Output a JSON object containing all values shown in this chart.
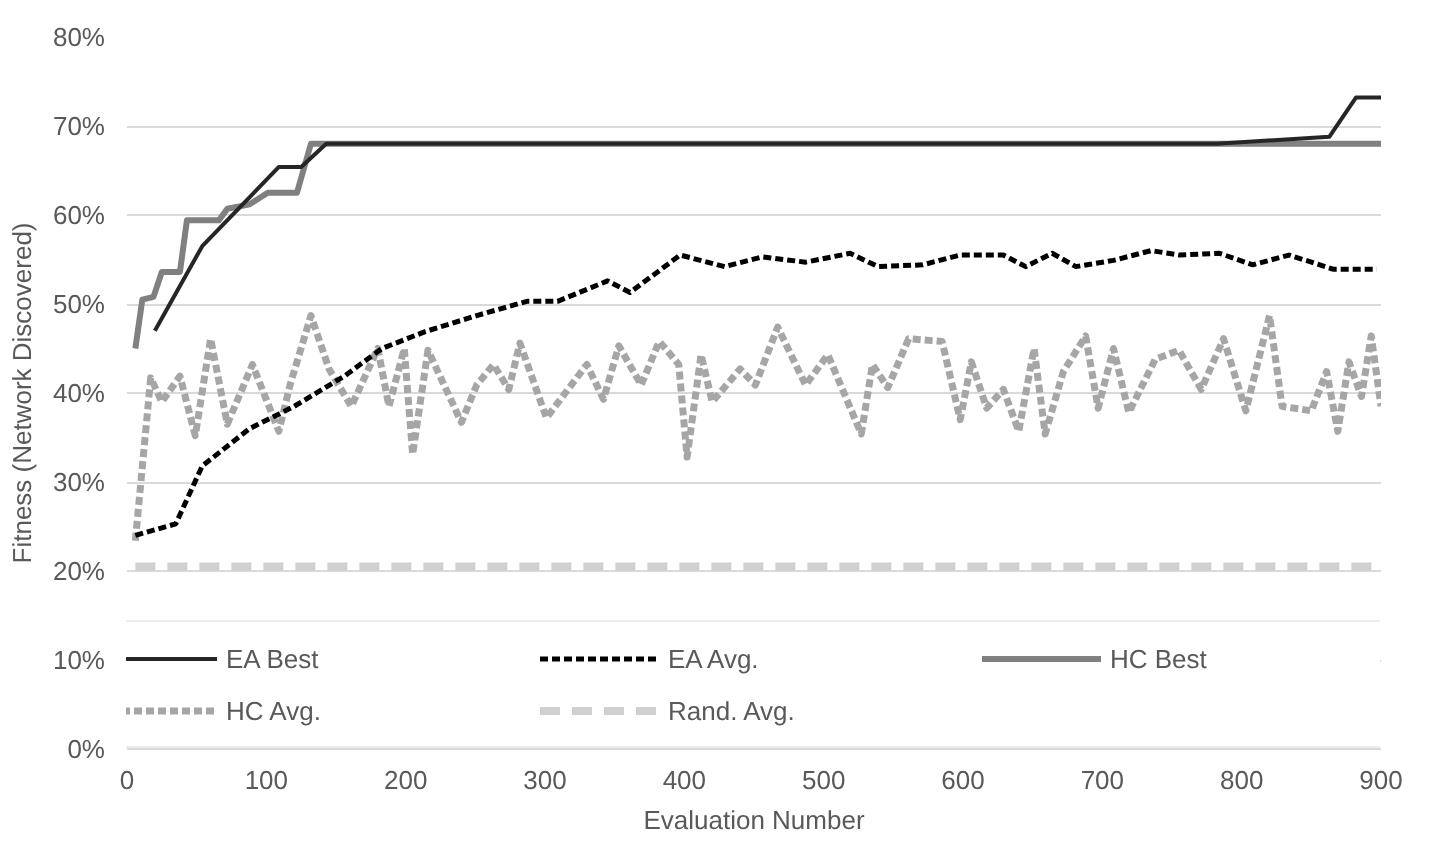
{
  "chart_data": {
    "type": "line",
    "xlabel": "Evaluation Number",
    "ylabel": "Fitness (Network Discovered)",
    "xlim": [
      0,
      900
    ],
    "xticks": [
      0,
      100,
      200,
      300,
      400,
      500,
      600,
      700,
      800,
      900
    ],
    "ylim": [
      0,
      80
    ],
    "yticks": [
      {
        "value": 0,
        "label": "0%"
      },
      {
        "value": 10,
        "label": "10%"
      },
      {
        "value": 20,
        "label": "20%"
      },
      {
        "value": 30,
        "label": "30%"
      },
      {
        "value": 40,
        "label": "40%"
      },
      {
        "value": 50,
        "label": "50%"
      },
      {
        "value": 60,
        "label": "60%"
      },
      {
        "value": 70,
        "label": "70%"
      },
      {
        "value": 80,
        "label": "80%"
      }
    ],
    "grid": "y",
    "legend": "bottom",
    "marker": "none",
    "series": [
      {
        "name": "EA Best",
        "color": "#262626",
        "line_style": "solid",
        "x": [
          20,
          54,
          109,
          125,
          143,
          782,
          863,
          882,
          900
        ],
        "values": [
          47,
          56.5,
          65.4,
          65.4,
          68,
          68,
          68.8,
          73.2,
          73.2
        ]
      },
      {
        "name": "EA Avg.",
        "color": "#000000",
        "line_style": "dashed",
        "x": [
          6,
          35,
          54,
          88,
          120,
          156,
          183,
          214,
          251,
          287,
          309,
          345,
          361,
          397,
          429,
          456,
          487,
          519,
          539,
          571,
          598,
          629,
          645,
          664,
          681,
          708,
          735,
          755,
          784,
          808,
          834,
          866,
          897
        ],
        "values": [
          24,
          25.3,
          31.8,
          36,
          38.5,
          41.9,
          45,
          46.9,
          48.7,
          50.3,
          50.3,
          52.6,
          51.3,
          55.5,
          54.2,
          55.3,
          54.7,
          55.7,
          54.2,
          54.4,
          55.5,
          55.5,
          54.2,
          55.7,
          54.2,
          54.9,
          56,
          55.5,
          55.7,
          54.4,
          55.5,
          53.9,
          53.9
        ]
      },
      {
        "name": "HC Best",
        "color": "#808080",
        "line_style": "solid",
        "x": [
          6,
          11,
          19,
          25,
          38,
          43,
          66,
          72,
          88,
          101,
          122,
          132,
          900
        ],
        "values": [
          45,
          50.5,
          50.8,
          53.6,
          53.6,
          59.4,
          59.4,
          60.7,
          61.2,
          62.5,
          62.5,
          68,
          68
        ]
      },
      {
        "name": "HC Avg.",
        "color": "#a6a6a6",
        "line_style": "dashed",
        "x": [
          6,
          17,
          25,
          38,
          49,
          60,
          72,
          90,
          109,
          117,
          132,
          145,
          161,
          180,
          188,
          199,
          205,
          216,
          240,
          251,
          263,
          274,
          282,
          301,
          330,
          342,
          353,
          369,
          382,
          396,
          402,
          412,
          420,
          440,
          451,
          467,
          487,
          503,
          527,
          535,
          546,
          561,
          585,
          598,
          606,
          617,
          629,
          640,
          651,
          659,
          672,
          688,
          697,
          708,
          719,
          738,
          755,
          771,
          787,
          803,
          820,
          829,
          850,
          861,
          869,
          877,
          886,
          893,
          900
        ],
        "values": [
          23.4,
          41.7,
          39,
          41.9,
          35.2,
          46.1,
          36.5,
          43.2,
          35.7,
          40.9,
          48.7,
          42.7,
          38.5,
          45,
          38.5,
          45,
          33.1,
          44.8,
          36.7,
          40.9,
          43.2,
          40.4,
          45.6,
          37.2,
          43.2,
          39.3,
          45.3,
          40.9,
          45.8,
          43.2,
          32.8,
          44.3,
          39,
          42.7,
          40.9,
          47.4,
          40.9,
          44.3,
          35.4,
          43.2,
          40.6,
          46.1,
          45.8,
          37,
          43.5,
          38.3,
          40.4,
          35.7,
          45,
          35.4,
          42.4,
          46.4,
          38.3,
          45,
          37.8,
          43.8,
          44.8,
          40.4,
          46.1,
          38,
          48.7,
          38.5,
          38,
          42.4,
          35.7,
          43.5,
          39.6,
          46.4,
          38.5
        ]
      },
      {
        "name": "Rand. Avg.",
        "color": "#d0d0d0",
        "line_style": "longdash",
        "x": [
          6,
          900
        ],
        "values": [
          20.5,
          20.5
        ]
      }
    ]
  }
}
